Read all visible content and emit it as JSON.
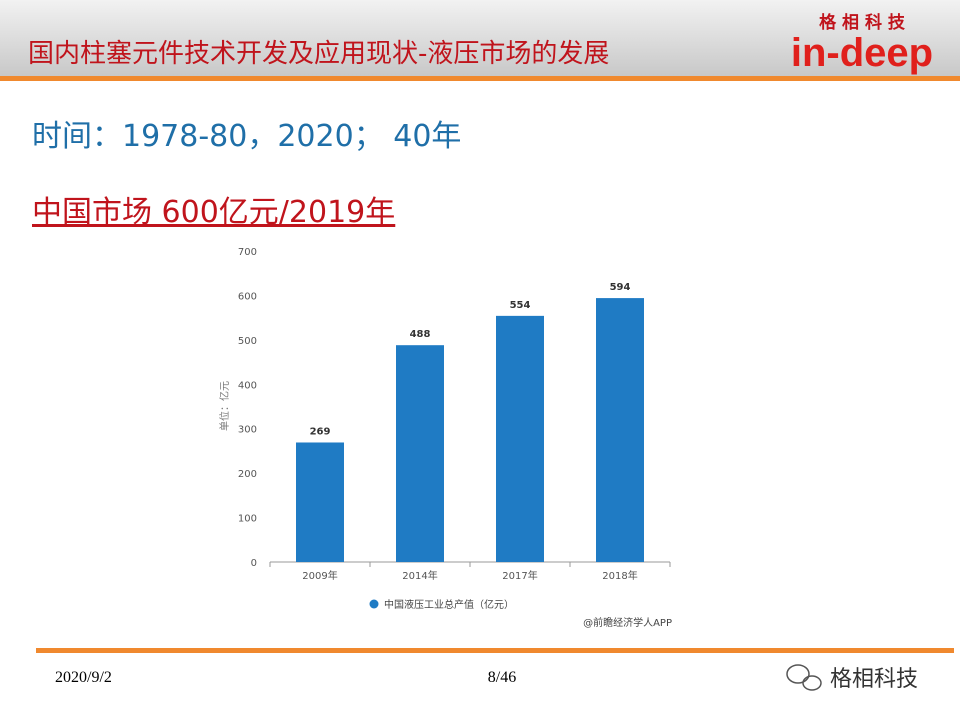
{
  "header": {
    "title": "国内柱塞元件技术开发及应用现状-液压市场的发展",
    "logo_top": "格 相 科 技",
    "logo": "in-deep"
  },
  "body": {
    "line1": "时间：1978-80，2020； 40年",
    "line2": "中国市场 600亿元/2019年"
  },
  "chart_data": {
    "type": "bar",
    "y_label": "单位：亿元",
    "categories": [
      "2009年",
      "2014年",
      "2017年",
      "2018年"
    ],
    "series": [
      {
        "name": "中国液压工业总产值（亿元）",
        "color": "#1f7bc4",
        "values": [
          269,
          488,
          554,
          594
        ]
      }
    ],
    "ylim": [
      0,
      700
    ],
    "yticks": [
      0,
      100,
      200,
      300,
      400,
      500,
      600,
      700
    ],
    "source": "@前瞻经济学人APP"
  },
  "footer": {
    "date": "2020/9/2",
    "page": "8/46",
    "brand": "格相科技"
  }
}
